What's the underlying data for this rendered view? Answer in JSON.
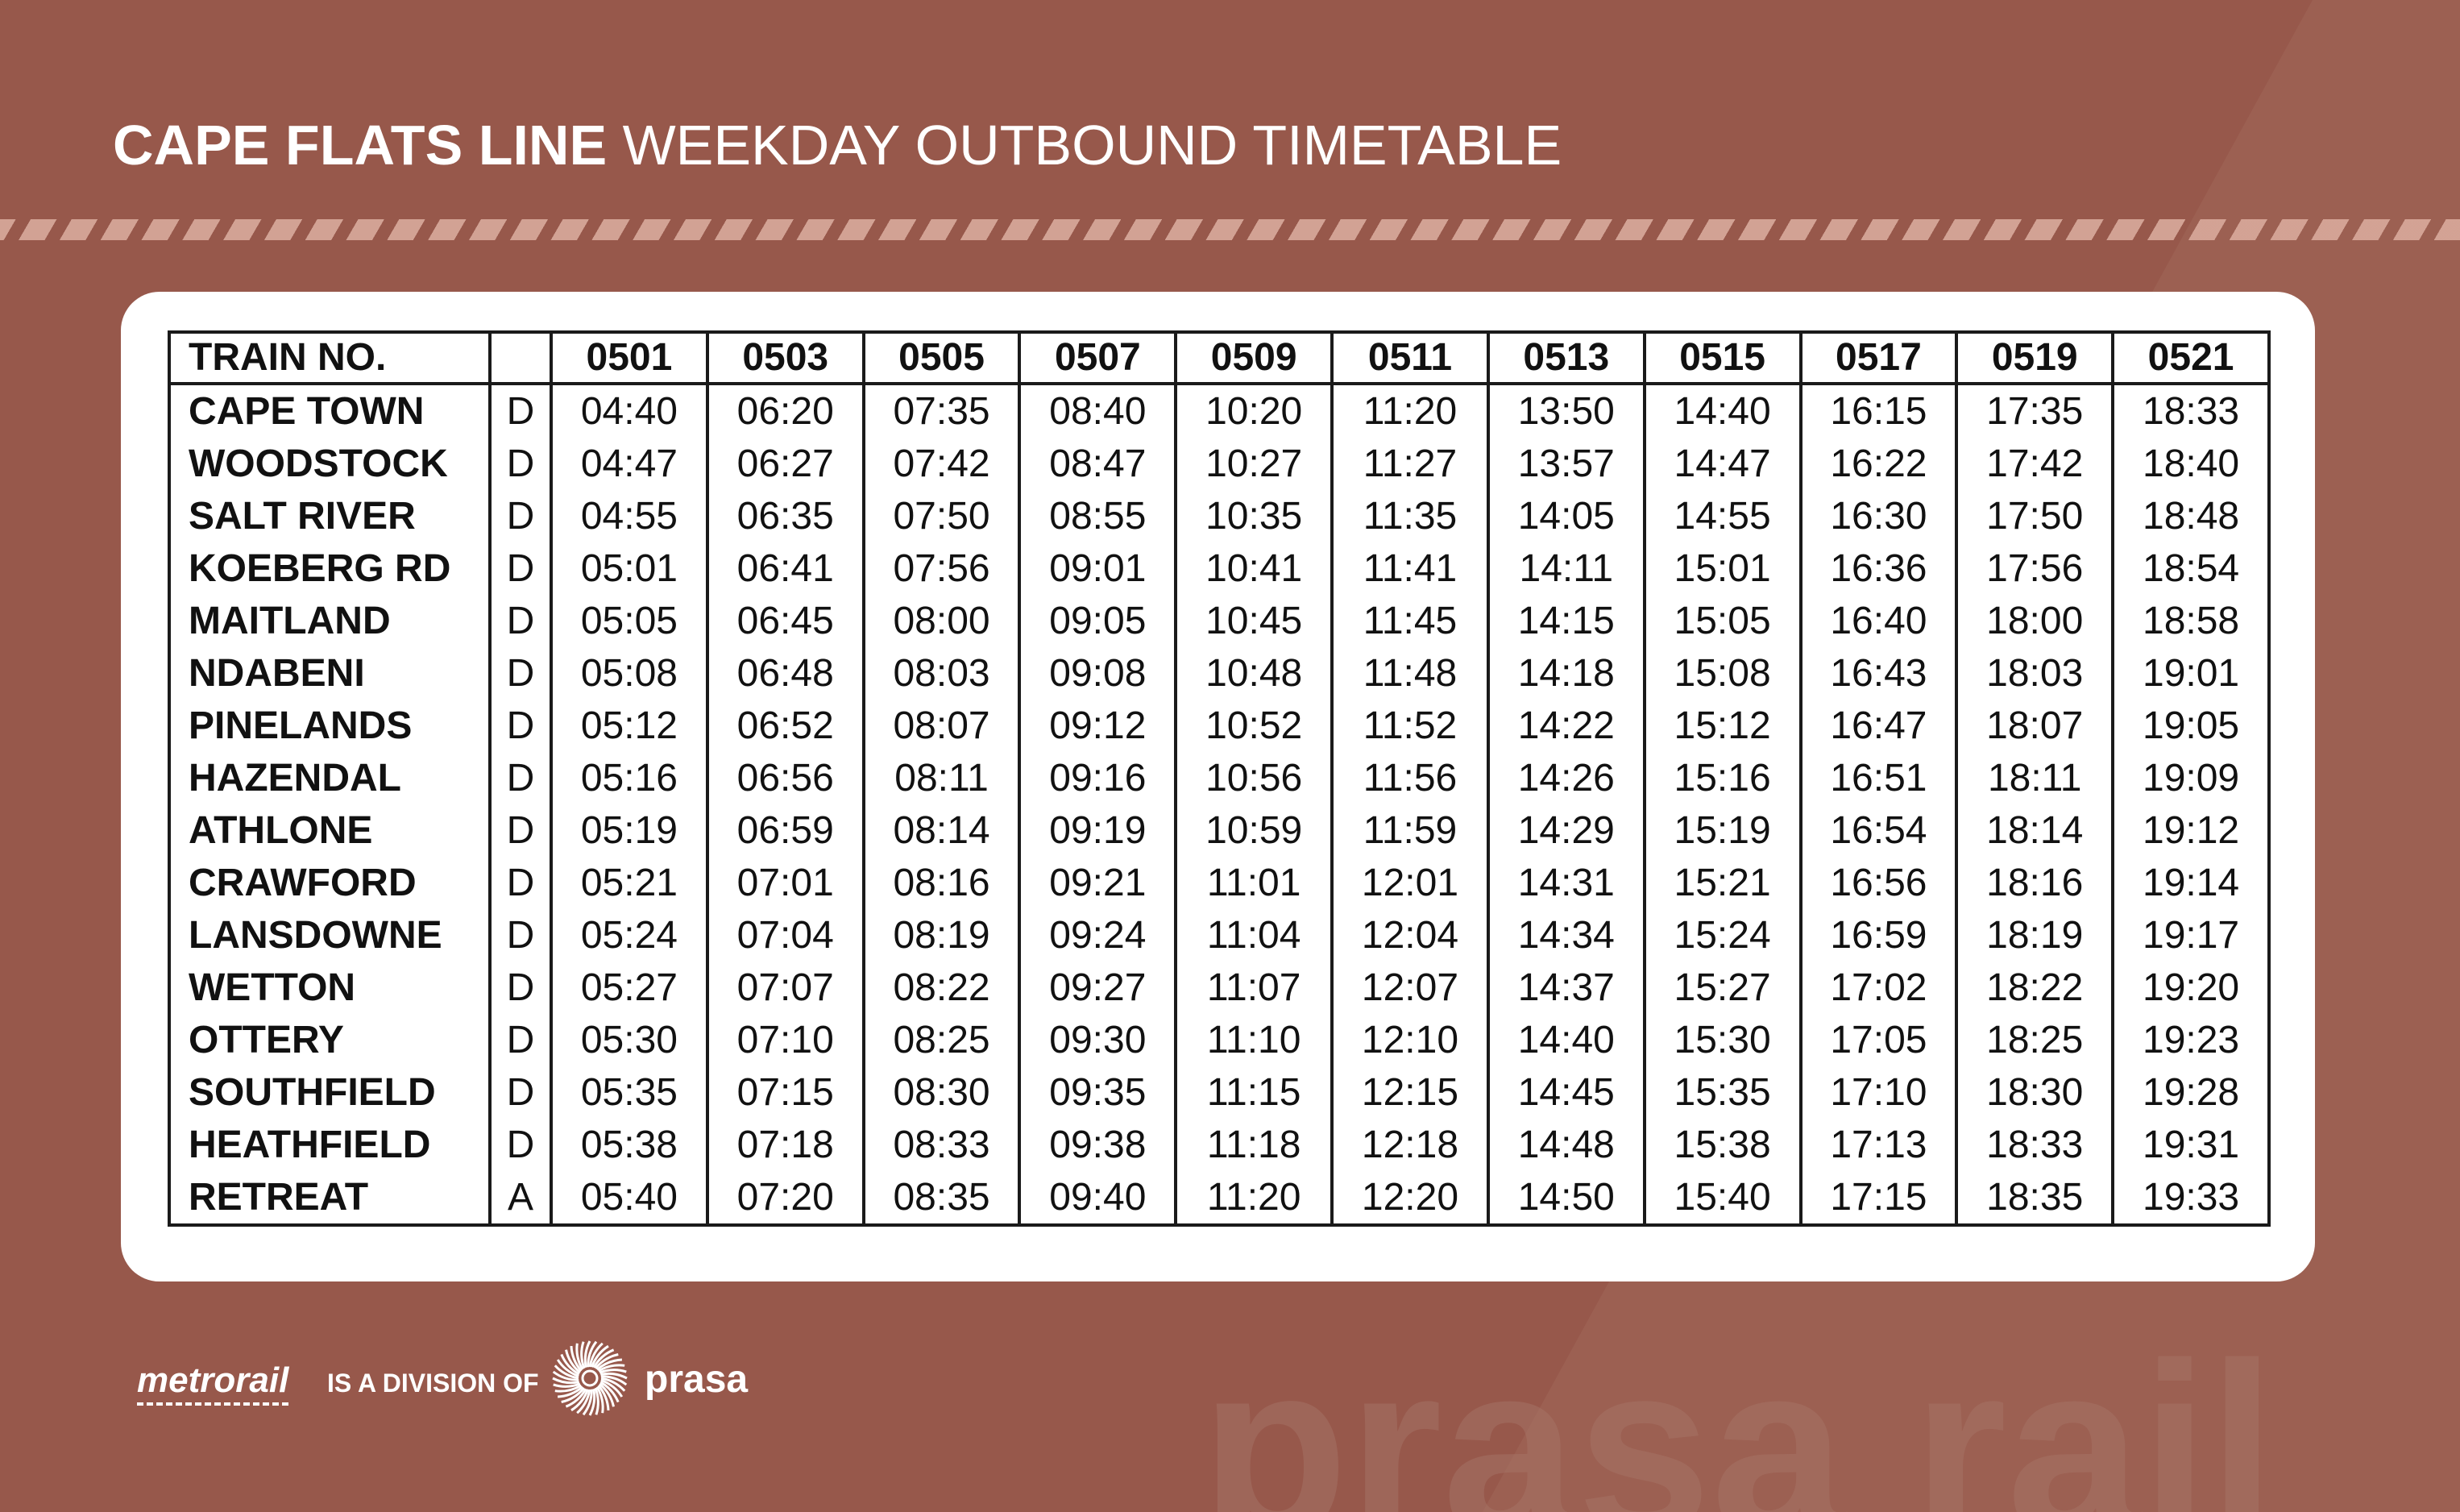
{
  "title": {
    "bold": "CAPE FLATS LINE",
    "light": "WEEKDAY OUTBOUND TIMETABLE"
  },
  "colors": {
    "background": "#97584b",
    "stripe": "#d9aa9c",
    "card": "#ffffff",
    "text": "#111111"
  },
  "timetable": {
    "header_label": "TRAIN NO.",
    "train_numbers": [
      "0501",
      "0503",
      "0505",
      "0507",
      "0509",
      "0511",
      "0513",
      "0515",
      "0517",
      "0519",
      "0521"
    ],
    "rows": [
      {
        "station": "CAPE TOWN",
        "code": "D",
        "times": [
          "04:40",
          "06:20",
          "07:35",
          "08:40",
          "10:20",
          "11:20",
          "13:50",
          "14:40",
          "16:15",
          "17:35",
          "18:33"
        ]
      },
      {
        "station": "WOODSTOCK",
        "code": "D",
        "times": [
          "04:47",
          "06:27",
          "07:42",
          "08:47",
          "10:27",
          "11:27",
          "13:57",
          "14:47",
          "16:22",
          "17:42",
          "18:40"
        ]
      },
      {
        "station": "SALT RIVER",
        "code": "D",
        "times": [
          "04:55",
          "06:35",
          "07:50",
          "08:55",
          "10:35",
          "11:35",
          "14:05",
          "14:55",
          "16:30",
          "17:50",
          "18:48"
        ]
      },
      {
        "station": "KOEBERG RD",
        "code": "D",
        "times": [
          "05:01",
          "06:41",
          "07:56",
          "09:01",
          "10:41",
          "11:41",
          "14:11",
          "15:01",
          "16:36",
          "17:56",
          "18:54"
        ]
      },
      {
        "station": "MAITLAND",
        "code": "D",
        "times": [
          "05:05",
          "06:45",
          "08:00",
          "09:05",
          "10:45",
          "11:45",
          "14:15",
          "15:05",
          "16:40",
          "18:00",
          "18:58"
        ]
      },
      {
        "station": "NDABENI",
        "code": "D",
        "times": [
          "05:08",
          "06:48",
          "08:03",
          "09:08",
          "10:48",
          "11:48",
          "14:18",
          "15:08",
          "16:43",
          "18:03",
          "19:01"
        ]
      },
      {
        "station": "PINELANDS",
        "code": "D",
        "times": [
          "05:12",
          "06:52",
          "08:07",
          "09:12",
          "10:52",
          "11:52",
          "14:22",
          "15:12",
          "16:47",
          "18:07",
          "19:05"
        ]
      },
      {
        "station": "HAZENDAL",
        "code": "D",
        "times": [
          "05:16",
          "06:56",
          "08:11",
          "09:16",
          "10:56",
          "11:56",
          "14:26",
          "15:16",
          "16:51",
          "18:11",
          "19:09"
        ]
      },
      {
        "station": "ATHLONE",
        "code": "D",
        "times": [
          "05:19",
          "06:59",
          "08:14",
          "09:19",
          "10:59",
          "11:59",
          "14:29",
          "15:19",
          "16:54",
          "18:14",
          "19:12"
        ]
      },
      {
        "station": "CRAWFORD",
        "code": "D",
        "times": [
          "05:21",
          "07:01",
          "08:16",
          "09:21",
          "11:01",
          "12:01",
          "14:31",
          "15:21",
          "16:56",
          "18:16",
          "19:14"
        ]
      },
      {
        "station": "LANSDOWNE",
        "code": "D",
        "times": [
          "05:24",
          "07:04",
          "08:19",
          "09:24",
          "11:04",
          "12:04",
          "14:34",
          "15:24",
          "16:59",
          "18:19",
          "19:17"
        ]
      },
      {
        "station": "WETTON",
        "code": "D",
        "times": [
          "05:27",
          "07:07",
          "08:22",
          "09:27",
          "11:07",
          "12:07",
          "14:37",
          "15:27",
          "17:02",
          "18:22",
          "19:20"
        ]
      },
      {
        "station": "OTTERY",
        "code": "D",
        "times": [
          "05:30",
          "07:10",
          "08:25",
          "09:30",
          "11:10",
          "12:10",
          "14:40",
          "15:30",
          "17:05",
          "18:25",
          "19:23"
        ]
      },
      {
        "station": "SOUTHFIELD",
        "code": "D",
        "times": [
          "05:35",
          "07:15",
          "08:30",
          "09:35",
          "11:15",
          "12:15",
          "14:45",
          "15:35",
          "17:10",
          "18:30",
          "19:28"
        ]
      },
      {
        "station": "HEATHFIELD",
        "code": "D",
        "times": [
          "05:38",
          "07:18",
          "08:33",
          "09:38",
          "11:18",
          "12:18",
          "14:48",
          "15:38",
          "17:13",
          "18:33",
          "19:31"
        ]
      },
      {
        "station": "RETREAT",
        "code": "A",
        "times": [
          "05:40",
          "07:20",
          "08:35",
          "09:40",
          "11:20",
          "12:20",
          "14:50",
          "15:40",
          "17:15",
          "18:35",
          "19:33"
        ]
      }
    ]
  },
  "footer": {
    "metrorail": "metrorail",
    "division_text": "IS A DIVISION OF",
    "prasa": "prasa",
    "watermark": "prasa rail",
    "icon": "prasa-sunburst-icon"
  }
}
